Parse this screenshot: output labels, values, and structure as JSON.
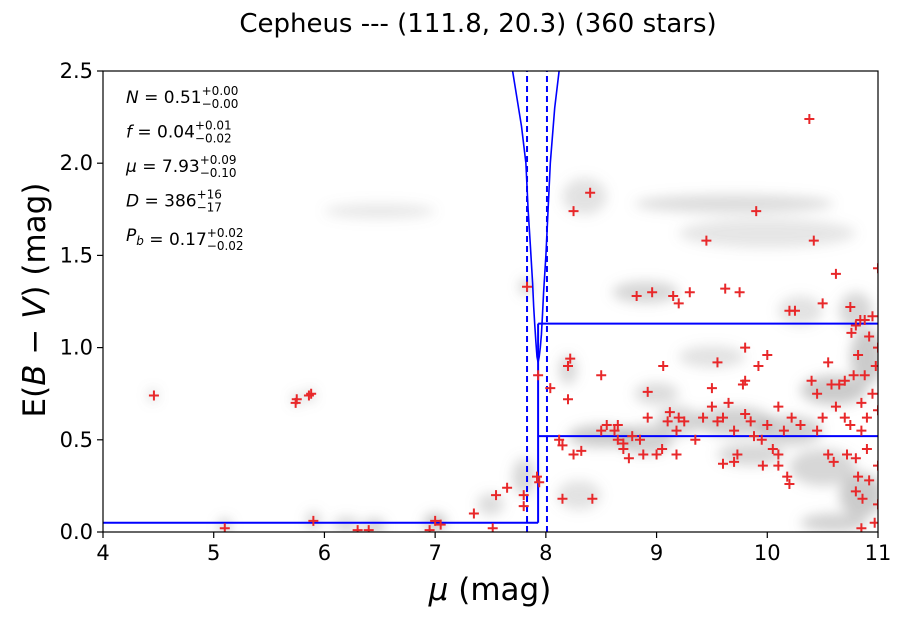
{
  "chart_data": {
    "type": "scatter",
    "title": "Cepheus --- (111.8, 20.3) (360 stars)",
    "xlabel_symbol": "μ",
    "xlabel_unit": "(mag)",
    "ylabel_prefix": "E(",
    "ylabel_b": "B",
    "ylabel_minus": " − ",
    "ylabel_v": "V",
    "ylabel_suffix": ") (mag)",
    "xlim": [
      4,
      11
    ],
    "ylim": [
      0,
      2.5
    ],
    "xticks": [
      4,
      5,
      6,
      7,
      8,
      9,
      10,
      11
    ],
    "xtick_labels": [
      "4",
      "5",
      "6",
      "7",
      "8",
      "9",
      "10",
      "11"
    ],
    "yticks": [
      0.0,
      0.5,
      1.0,
      1.5,
      2.0,
      2.5
    ],
    "ytick_labels": [
      "0.0",
      "0.5",
      "1.0",
      "1.5",
      "2.0",
      "2.5"
    ],
    "annotations": [
      {
        "sym": "N",
        "val": " = 0.51",
        "sup": "+0.00",
        "sub": "−0.00"
      },
      {
        "sym": "f",
        "val": " = 0.04",
        "sup": "+0.01",
        "sub": "−0.02"
      },
      {
        "sym": "μ",
        "val": " = 7.93",
        "sup": "+0.09",
        "sub": "−0.10"
      },
      {
        "sym": "D",
        "val": " = 386",
        "sup": "+16",
        "sub": "−17"
      },
      {
        "sym": "P",
        "symsub": "b",
        "val": " = 0.17",
        "sup": "+0.02",
        "sub": "−0.02"
      }
    ],
    "colors": {
      "stars": "#e8282a",
      "fit": "#0000ff",
      "density": "#8c8c8c"
    },
    "fit_step": {
      "mu_break": 7.93,
      "ebv_near": 0.05,
      "ebv_far": 1.13,
      "ebv_far_lower": 0.52
    },
    "distance_lines": [
      7.83,
      8.01
    ],
    "probability_curve": [
      [
        7.7,
        2.5
      ],
      [
        7.78,
        2.2
      ],
      [
        7.82,
        2.0
      ],
      [
        7.84,
        1.75
      ],
      [
        7.86,
        1.55
      ],
      [
        7.88,
        1.35
      ],
      [
        7.89,
        1.22
      ],
      [
        7.9,
        1.12
      ],
      [
        7.91,
        1.03
      ],
      [
        7.92,
        0.95
      ],
      [
        7.93,
        0.92
      ],
      [
        7.94,
        0.95
      ],
      [
        7.95,
        1.0
      ],
      [
        7.96,
        1.07
      ],
      [
        7.97,
        1.18
      ],
      [
        7.98,
        1.3
      ],
      [
        8.0,
        1.5
      ],
      [
        8.02,
        1.75
      ],
      [
        8.04,
        2.0
      ],
      [
        8.08,
        2.3
      ],
      [
        8.12,
        2.5
      ]
    ],
    "density_blobs": [
      [
        5.1,
        0.03,
        0.05,
        0.04,
        0.55
      ],
      [
        5.75,
        0.72,
        0.03,
        0.03,
        0.6
      ],
      [
        5.87,
        0.74,
        0.03,
        0.03,
        0.6
      ],
      [
        4.45,
        0.74,
        0.03,
        0.03,
        0.55
      ],
      [
        5.9,
        0.06,
        0.06,
        0.05,
        0.4
      ],
      [
        6.2,
        0.04,
        0.12,
        0.04,
        0.35
      ],
      [
        6.45,
        0.03,
        0.1,
        0.04,
        0.45
      ],
      [
        7.0,
        0.05,
        0.1,
        0.05,
        0.5
      ],
      [
        7.5,
        0.15,
        0.12,
        0.06,
        0.3
      ],
      [
        7.8,
        0.3,
        0.1,
        0.1,
        0.35
      ],
      [
        7.82,
        1.33,
        0.05,
        0.04,
        0.5
      ],
      [
        8.35,
        1.82,
        0.2,
        0.1,
        0.25
      ],
      [
        9.7,
        1.78,
        0.9,
        0.05,
        0.3
      ],
      [
        6.5,
        1.74,
        0.5,
        0.04,
        0.2
      ],
      [
        8.9,
        1.3,
        0.3,
        0.06,
        0.35
      ],
      [
        8.2,
        0.88,
        0.08,
        0.08,
        0.35
      ],
      [
        8.5,
        0.52,
        0.3,
        0.06,
        0.45
      ],
      [
        8.9,
        0.5,
        0.25,
        0.08,
        0.4
      ],
      [
        9.2,
        0.6,
        0.2,
        0.08,
        0.35
      ],
      [
        9.7,
        0.6,
        0.35,
        0.08,
        0.4
      ],
      [
        9.85,
        0.42,
        0.3,
        0.06,
        0.35
      ],
      [
        10.2,
        0.55,
        0.3,
        0.08,
        0.4
      ],
      [
        10.6,
        0.77,
        0.3,
        0.08,
        0.45
      ],
      [
        10.5,
        0.35,
        0.3,
        0.1,
        0.35
      ],
      [
        10.85,
        0.2,
        0.2,
        0.12,
        0.45
      ],
      [
        10.9,
        0.95,
        0.15,
        0.15,
        0.45
      ],
      [
        10.8,
        1.2,
        0.15,
        0.1,
        0.35
      ],
      [
        9.5,
        0.95,
        0.3,
        0.06,
        0.25
      ],
      [
        10.3,
        1.2,
        0.2,
        0.08,
        0.25
      ],
      [
        10.0,
        1.62,
        0.8,
        0.08,
        0.22
      ],
      [
        9.0,
        0.75,
        0.2,
        0.06,
        0.3
      ],
      [
        10.6,
        0.05,
        0.3,
        0.05,
        0.4
      ],
      [
        8.3,
        0.2,
        0.2,
        0.08,
        0.25
      ]
    ],
    "stars": [
      [
        4.46,
        0.74
      ],
      [
        5.1,
        0.02
      ],
      [
        5.74,
        0.7
      ],
      [
        5.75,
        0.72
      ],
      [
        5.86,
        0.74
      ],
      [
        5.88,
        0.75
      ],
      [
        5.9,
        0.06
      ],
      [
        6.3,
        0.01
      ],
      [
        6.4,
        0.01
      ],
      [
        6.95,
        0.01
      ],
      [
        7.0,
        0.06
      ],
      [
        7.05,
        0.04
      ],
      [
        7.35,
        0.1
      ],
      [
        7.52,
        0.02
      ],
      [
        7.55,
        0.2
      ],
      [
        7.65,
        0.24
      ],
      [
        7.8,
        0.14
      ],
      [
        7.8,
        0.2
      ],
      [
        7.83,
        1.33
      ],
      [
        7.92,
        0.3
      ],
      [
        7.93,
        0.85
      ],
      [
        7.94,
        0.27
      ],
      [
        8.04,
        0.78
      ],
      [
        8.12,
        0.5
      ],
      [
        8.15,
        0.18
      ],
      [
        8.15,
        0.47
      ],
      [
        8.2,
        0.9
      ],
      [
        8.2,
        0.72
      ],
      [
        8.22,
        0.94
      ],
      [
        8.25,
        1.74
      ],
      [
        8.25,
        0.42
      ],
      [
        8.32,
        0.44
      ],
      [
        8.4,
        1.84
      ],
      [
        8.42,
        0.18
      ],
      [
        8.5,
        0.85
      ],
      [
        8.5,
        0.55
      ],
      [
        8.55,
        0.58
      ],
      [
        8.62,
        0.55
      ],
      [
        8.65,
        0.5
      ],
      [
        8.7,
        0.48
      ],
      [
        8.75,
        0.4
      ],
      [
        8.78,
        0.52
      ],
      [
        8.82,
        1.28
      ],
      [
        8.85,
        0.5
      ],
      [
        8.88,
        0.42
      ],
      [
        8.92,
        0.76
      ],
      [
        8.92,
        0.62
      ],
      [
        8.96,
        1.3
      ],
      [
        9.05,
        0.45
      ],
      [
        9.06,
        0.9
      ],
      [
        9.1,
        0.6
      ],
      [
        9.12,
        0.65
      ],
      [
        9.15,
        1.28
      ],
      [
        9.18,
        0.55
      ],
      [
        9.18,
        0.42
      ],
      [
        9.2,
        0.62
      ],
      [
        9.2,
        1.24
      ],
      [
        9.25,
        0.6
      ],
      [
        9.3,
        1.3
      ],
      [
        9.35,
        0.5
      ],
      [
        9.42,
        0.62
      ],
      [
        9.45,
        1.58
      ],
      [
        9.5,
        0.78
      ],
      [
        9.5,
        0.68
      ],
      [
        9.55,
        0.6
      ],
      [
        9.55,
        0.92
      ],
      [
        9.6,
        0.37
      ],
      [
        9.62,
        1.32
      ],
      [
        9.65,
        0.7
      ],
      [
        9.7,
        0.38
      ],
      [
        9.7,
        0.55
      ],
      [
        9.73,
        0.42
      ],
      [
        9.75,
        1.3
      ],
      [
        9.78,
        0.8
      ],
      [
        9.8,
        0.64
      ],
      [
        9.8,
        1.0
      ],
      [
        9.8,
        0.82
      ],
      [
        9.85,
        0.6
      ],
      [
        9.88,
        0.52
      ],
      [
        9.9,
        1.74
      ],
      [
        9.92,
        0.9
      ],
      [
        9.95,
        0.5
      ],
      [
        9.96,
        0.36
      ],
      [
        10.0,
        0.96
      ],
      [
        10.0,
        0.58
      ],
      [
        10.05,
        0.45
      ],
      [
        10.1,
        0.68
      ],
      [
        10.1,
        0.36
      ],
      [
        10.15,
        0.55
      ],
      [
        10.18,
        0.3
      ],
      [
        10.2,
        0.26
      ],
      [
        10.2,
        1.2
      ],
      [
        10.22,
        0.62
      ],
      [
        10.25,
        1.2
      ],
      [
        10.3,
        0.58
      ],
      [
        10.38,
        2.24
      ],
      [
        10.4,
        0.82
      ],
      [
        10.42,
        1.58
      ],
      [
        10.45,
        0.75
      ],
      [
        10.5,
        1.24
      ],
      [
        10.5,
        0.62
      ],
      [
        10.55,
        0.42
      ],
      [
        10.55,
        0.92
      ],
      [
        10.58,
        0.8
      ],
      [
        10.6,
        0.38
      ],
      [
        10.62,
        1.4
      ],
      [
        10.62,
        0.68
      ],
      [
        10.65,
        0.8
      ],
      [
        10.7,
        0.82
      ],
      [
        10.72,
        0.42
      ],
      [
        10.75,
        0.58
      ],
      [
        10.75,
        1.22
      ],
      [
        10.76,
        1.08
      ],
      [
        10.78,
        0.85
      ],
      [
        10.8,
        0.4
      ],
      [
        10.8,
        0.22
      ],
      [
        10.8,
        1.12
      ],
      [
        10.82,
        0.96
      ],
      [
        10.82,
        0.3
      ],
      [
        10.84,
        1.15
      ],
      [
        10.85,
        0.55
      ],
      [
        10.85,
        0.7
      ],
      [
        10.86,
        0.18
      ],
      [
        10.88,
        1.15
      ],
      [
        10.88,
        0.85
      ],
      [
        10.9,
        0.62
      ],
      [
        10.9,
        0.45
      ],
      [
        10.92,
        1.06
      ],
      [
        10.92,
        0.28
      ],
      [
        10.95,
        0.75
      ],
      [
        10.95,
        1.17
      ],
      [
        10.98,
        0.9
      ],
      [
        11.0,
        1.0
      ],
      [
        11.0,
        0.15
      ],
      [
        11.0,
        0.36
      ],
      [
        11.0,
        0.66
      ],
      [
        11.0,
        1.43
      ],
      [
        10.97,
        0.05
      ],
      [
        10.85,
        0.02
      ],
      [
        9.0,
        0.42
      ],
      [
        8.7,
        0.45
      ],
      [
        8.65,
        0.58
      ],
      [
        10.45,
        0.55
      ],
      [
        9.6,
        0.62
      ],
      [
        10.1,
        0.42
      ],
      [
        10.7,
        0.62
      ]
    ]
  }
}
